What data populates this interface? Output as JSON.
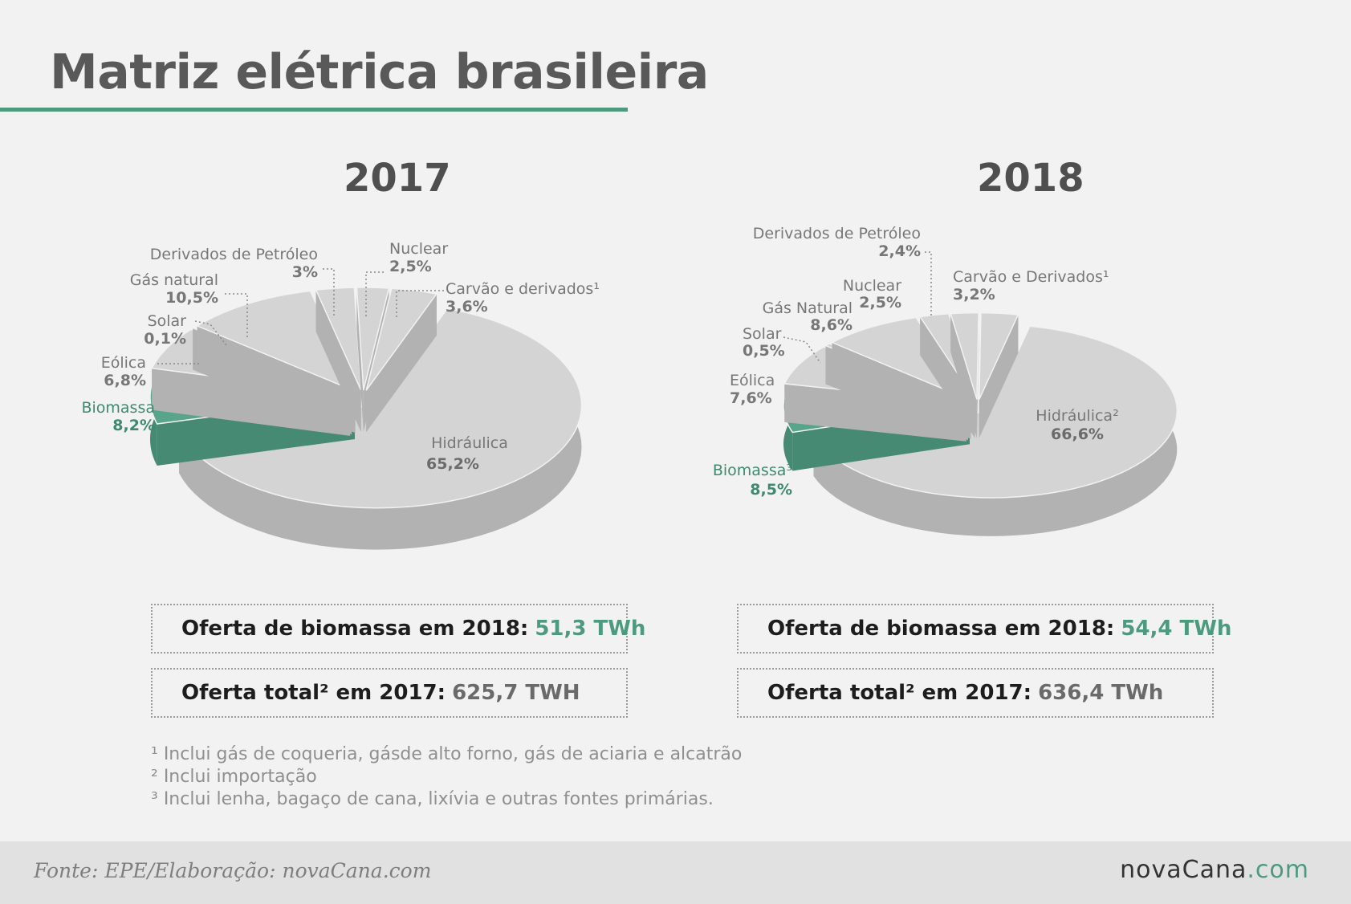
{
  "title": "Matriz elétrica brasileira",
  "colors": {
    "accent": "#4d9a7f",
    "slice": "#d4d4d4",
    "side": "#b2b2b2",
    "green_top": "#58a58b",
    "green_side": "#468a73"
  },
  "chart_data": [
    {
      "type": "pie",
      "title": "2017",
      "slices": [
        {
          "label": "Hidráulica",
          "value_text": "65,2%",
          "value": 65.2
        },
        {
          "label": "Biomassa",
          "value_text": "8,2%",
          "value": 8.2
        },
        {
          "label": "Eólica",
          "value_text": "6,8%",
          "value": 6.8
        },
        {
          "label": "Solar",
          "value_text": "0,1%",
          "value": 0.1
        },
        {
          "label": "Gás natural",
          "value_text": "10,5%",
          "value": 10.5
        },
        {
          "label": "Derivados de Petróleo",
          "value_text": "3%",
          "value": 3
        },
        {
          "label": "Nuclear",
          "value_text": "2,5%",
          "value": 2.5
        },
        {
          "label": "Carvão e derivados¹",
          "value_text": "3,6%",
          "value": 3.6
        }
      ]
    },
    {
      "type": "pie",
      "title": "2018",
      "slices": [
        {
          "label": "Hidráulica²",
          "value_text": "66,6%",
          "value": 66.6
        },
        {
          "label": "Biomassa³",
          "value_text": "8,5%",
          "value": 8.5
        },
        {
          "label": "Eólica",
          "value_text": "7,6%",
          "value": 7.6
        },
        {
          "label": "Solar",
          "value_text": "0,5%",
          "value": 0.5
        },
        {
          "label": "Gás Natural",
          "value_text": "8,6%",
          "value": 8.6
        },
        {
          "label": "Nuclear",
          "value_text": "2,5%",
          "value": 2.5
        },
        {
          "label": "Derivados de Petróleo",
          "value_text": "2,4%",
          "value": 2.4
        },
        {
          "label": "Carvão e Derivados¹",
          "value_text": "3,2%",
          "value": 3.2
        }
      ]
    }
  ],
  "boxes": {
    "a1": {
      "label": "Oferta de biomassa em 2018:",
      "value": "51,3 TWh"
    },
    "a2": {
      "label": "Oferta total² em 2017:",
      "value": "625,7 TWH"
    },
    "b1": {
      "label": "Oferta de biomassa em 2018:",
      "value": "54,4 TWh"
    },
    "b2": {
      "label": "Oferta total² em 2017:",
      "value": "636,4 TWh"
    }
  },
  "notes": [
    "¹ Inclui gás de coqueria, gásde alto forno, gás de aciaria e alcatrão",
    "² Inclui importação",
    "³ Inclui lenha, bagaço de cana, lixívia e outras fontes primárias."
  ],
  "footer": {
    "source": "Fonte: EPE/Elaboração: novaCana.com",
    "brand_main": "novaCana",
    "brand_suffix": ".com"
  }
}
